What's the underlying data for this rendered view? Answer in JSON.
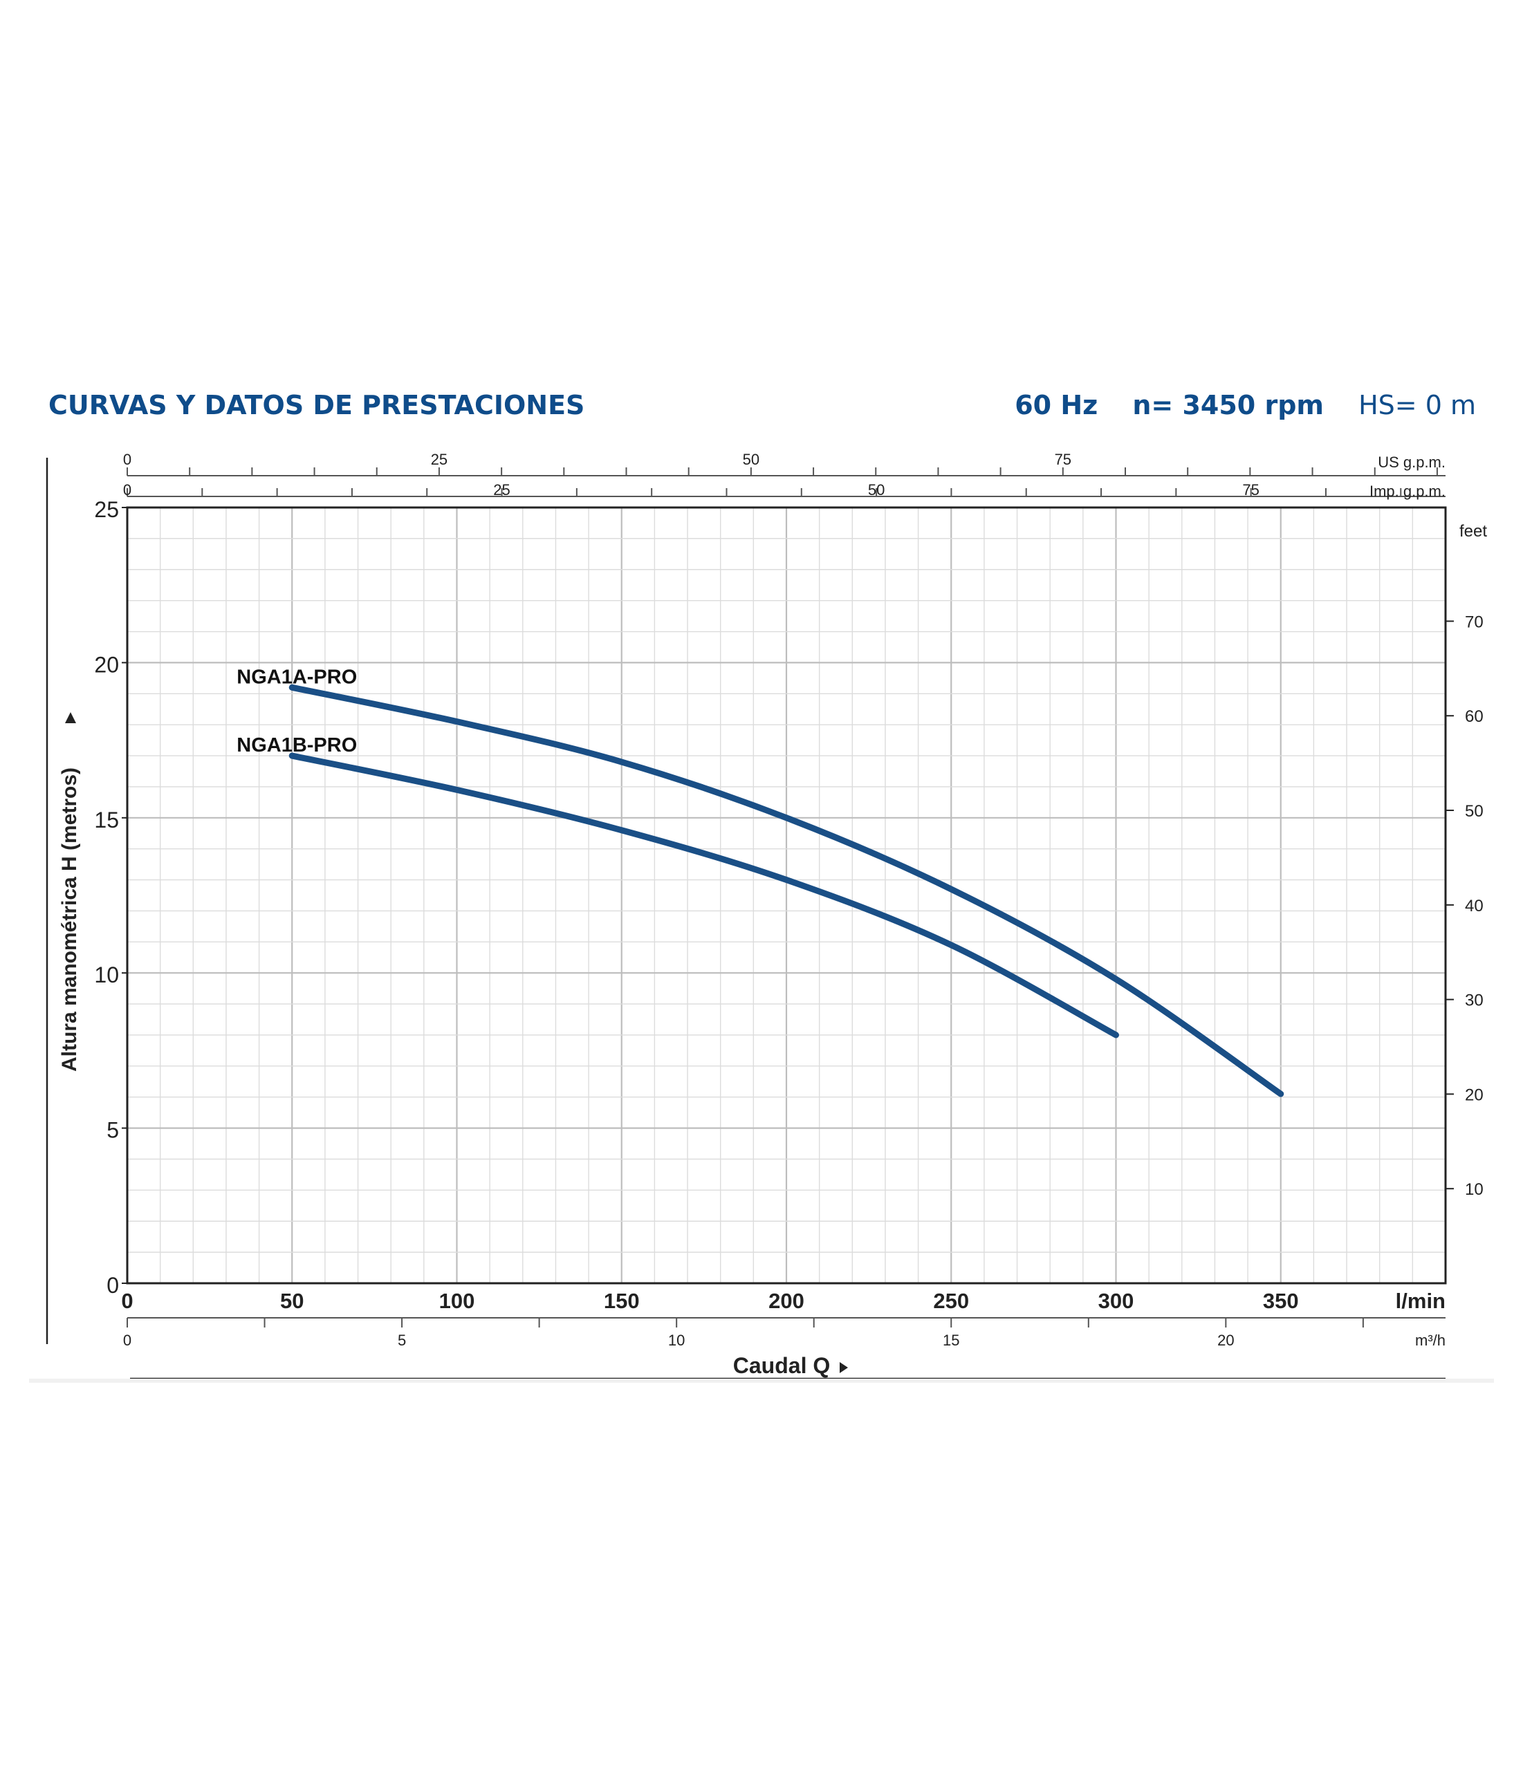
{
  "header": {
    "title": "CURVAS Y DATOS DE PRESTACIONES",
    "frequency": "60 Hz",
    "speed": "n= 3450 rpm",
    "hs": "HS= 0 m"
  },
  "chart_data": {
    "type": "line",
    "title": "CURVAS Y DATOS DE PRESTACIONES",
    "xlabel": "Caudal Q",
    "ylabel": "Altura manométrica H (metros)",
    "xlim": [
      0,
      400
    ],
    "ylim": [
      0,
      25
    ],
    "grid": true,
    "x_unit": "l/min",
    "x_ticks": [
      "0",
      "50",
      "100",
      "150",
      "200",
      "250",
      "300",
      "350"
    ],
    "y_ticks": [
      "0",
      "5",
      "10",
      "15",
      "20",
      "25"
    ],
    "y_right_axis": {
      "unit": "feet",
      "ticks": [
        "10",
        "20",
        "30",
        "40",
        "50",
        "60",
        "70"
      ]
    },
    "x_secondary_axes": [
      {
        "unit": "US g.p.m.",
        "ticks": [
          "0",
          "25",
          "50",
          "75"
        ]
      },
      {
        "unit": "Imp. g.p.m.",
        "ticks": [
          "0",
          "25",
          "50",
          "75"
        ]
      },
      {
        "unit": "m³/h",
        "ticks": [
          "0",
          "5",
          "10",
          "15",
          "20"
        ]
      }
    ],
    "series": [
      {
        "name": "NGA1A-PRO",
        "color": "#1a4f86",
        "points": [
          [
            50,
            19.2
          ],
          [
            100,
            18.1
          ],
          [
            150,
            16.8
          ],
          [
            200,
            15.0
          ],
          [
            250,
            12.7
          ],
          [
            300,
            9.8
          ],
          [
            350,
            6.1
          ]
        ]
      },
      {
        "name": "NGA1B-PRO",
        "color": "#1a4f86",
        "points": [
          [
            50,
            17.0
          ],
          [
            100,
            15.9
          ],
          [
            150,
            14.6
          ],
          [
            200,
            13.0
          ],
          [
            250,
            10.9
          ],
          [
            300,
            8.0
          ]
        ]
      }
    ]
  }
}
